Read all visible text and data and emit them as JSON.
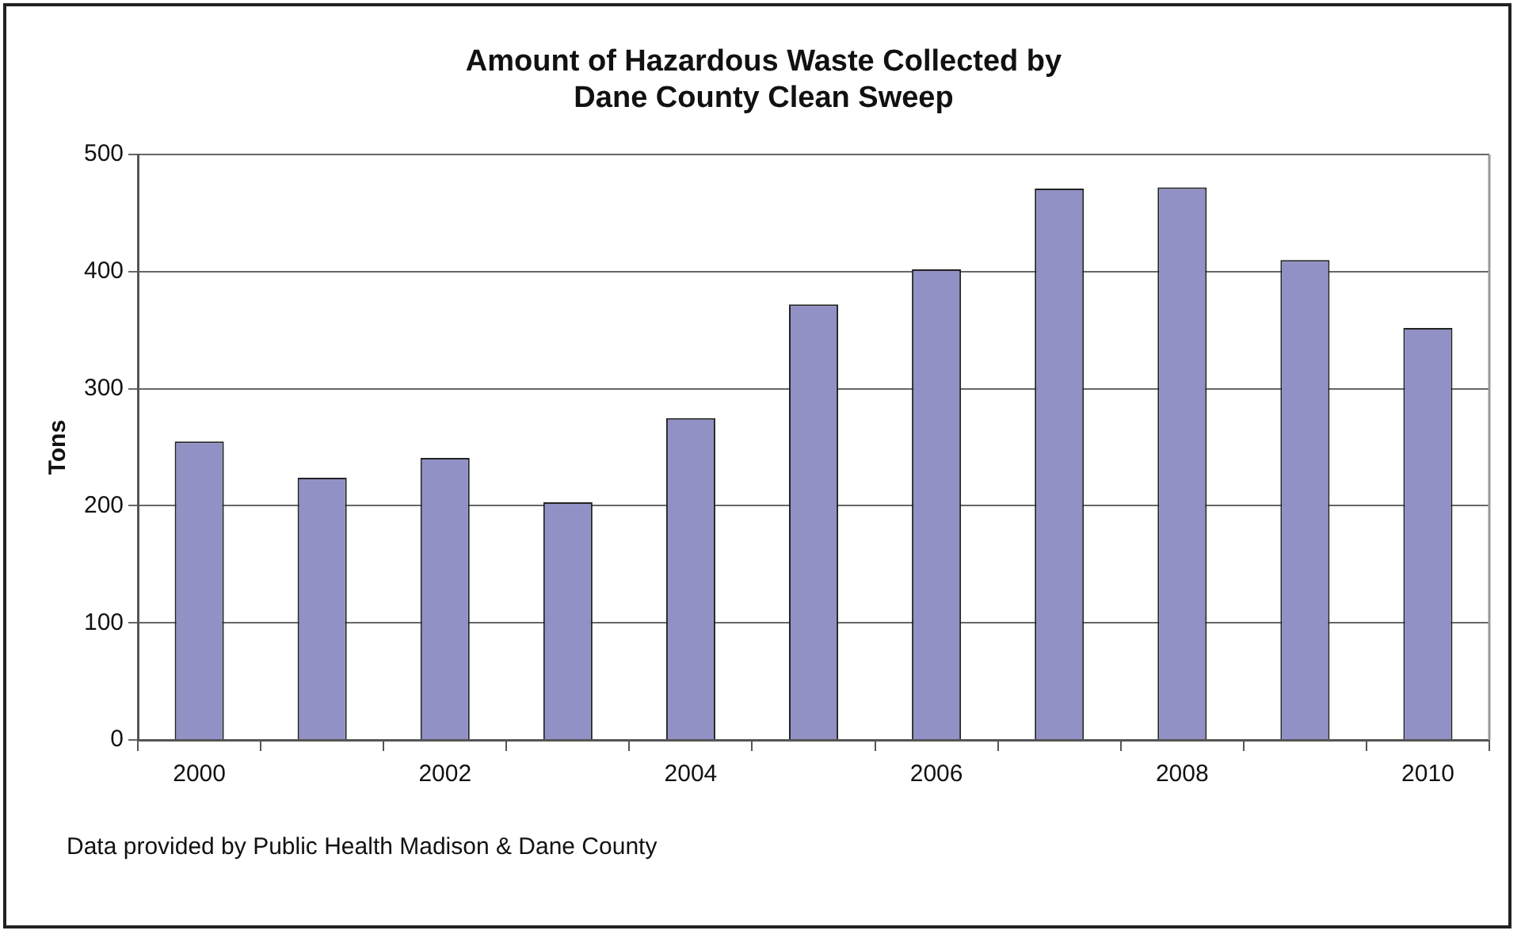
{
  "chart_data": {
    "type": "bar",
    "title": [
      "Amount of Hazardous Waste Collected by",
      "Dane County Clean Sweep"
    ],
    "ylabel": "Tons",
    "categories": [
      "2000",
      null,
      "2002",
      null,
      "2004",
      null,
      "2006",
      null,
      "2008",
      null,
      "2010"
    ],
    "values": [
      255,
      224,
      241,
      203,
      275,
      372,
      402,
      471,
      472,
      410,
      352
    ],
    "color": "#9191c6",
    "ylim": [
      0,
      500
    ],
    "yticks": [
      0,
      100,
      200,
      300,
      400,
      500
    ],
    "grid": "y",
    "legend": false,
    "annotations": [
      "Data provided by Public Health Madison & Dane County"
    ]
  }
}
